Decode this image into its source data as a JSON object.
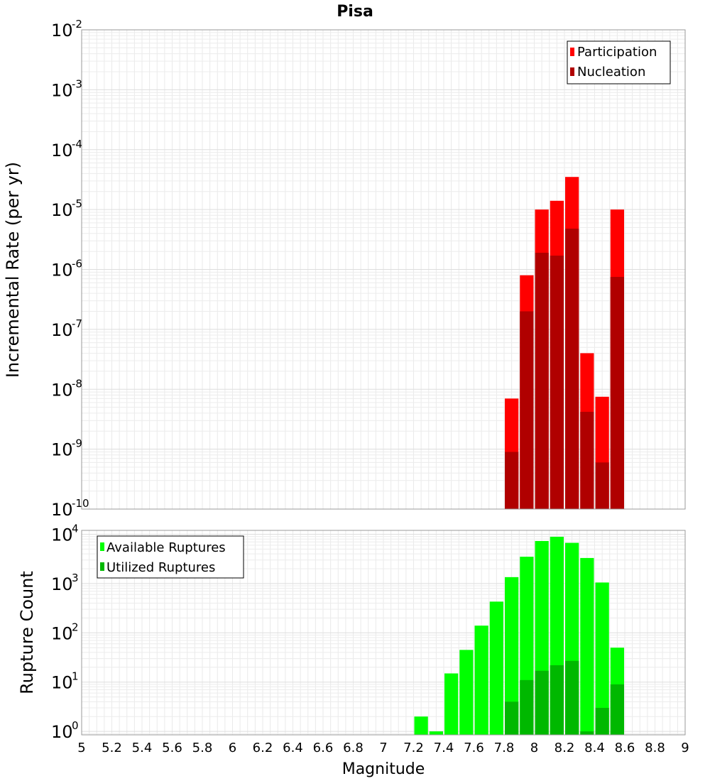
{
  "chart_data": [
    {
      "type": "bar",
      "title": "Pisa",
      "xlabel": "Magnitude",
      "ylabel": "Incremental Rate (per yr)",
      "yscale": "log",
      "xlim": [
        5,
        9
      ],
      "ylim": [
        1e-10,
        0.01
      ],
      "bin_width": 0.1,
      "x": [
        7.8,
        7.9,
        8.0,
        8.1,
        8.2,
        8.3,
        8.4,
        8.5
      ],
      "grid": true,
      "legend_position": "top-right",
      "y_ticks": [
        {
          "base": "10",
          "exp": "-2"
        },
        {
          "base": "10",
          "exp": "-3"
        },
        {
          "base": "10",
          "exp": "-4"
        },
        {
          "base": "10",
          "exp": "-5"
        },
        {
          "base": "10",
          "exp": "-6"
        },
        {
          "base": "10",
          "exp": "-7"
        },
        {
          "base": "10",
          "exp": "-8"
        },
        {
          "base": "10",
          "exp": "-9"
        },
        {
          "base": "10",
          "exp": "-10"
        }
      ],
      "series": [
        {
          "name": "Participation",
          "color": "#ff0000",
          "values": [
            7e-09,
            8e-07,
            1e-05,
            1.4e-05,
            3.5e-05,
            4e-08,
            7.5e-09,
            1e-05
          ]
        },
        {
          "name": "Nucleation",
          "color": "#b00000",
          "values": [
            9e-10,
            2e-07,
            1.9e-06,
            1.7e-06,
            4.8e-06,
            4.2e-09,
            6e-10,
            7.5e-07
          ]
        }
      ]
    },
    {
      "type": "bar",
      "title": "",
      "xlabel": "Magnitude",
      "ylabel": "Rupture Count",
      "yscale": "log",
      "xlim": [
        5,
        9
      ],
      "ylim": [
        0.85,
        12000
      ],
      "bin_width": 0.1,
      "x": [
        7.2,
        7.3,
        7.4,
        7.5,
        7.6,
        7.7,
        7.8,
        7.9,
        8.0,
        8.1,
        8.2,
        8.3,
        8.4,
        8.5
      ],
      "grid": true,
      "legend_position": "top-left",
      "x_ticks": [
        "5",
        "5.2",
        "5.4",
        "5.6",
        "5.8",
        "6",
        "6.2",
        "6.4",
        "6.6",
        "6.8",
        "7",
        "7.2",
        "7.4",
        "7.6",
        "7.8",
        "8",
        "8.2",
        "8.4",
        "8.6",
        "8.8",
        "9"
      ],
      "y_ticks": [
        {
          "base": "10",
          "exp": "4"
        },
        {
          "base": "10",
          "exp": "3"
        },
        {
          "base": "10",
          "exp": "2"
        },
        {
          "base": "10",
          "exp": "1"
        },
        {
          "base": "10",
          "exp": "0"
        }
      ],
      "series": [
        {
          "name": "Available Ruptures",
          "color": "#00ff00",
          "values": [
            2,
            1,
            15,
            45,
            140,
            430,
            1350,
            3500,
            7300,
            8900,
            6700,
            3300,
            1050,
            50
          ]
        },
        {
          "name": "Utilized Ruptures",
          "color": "#00b800",
          "values": [
            0,
            0,
            0,
            0,
            0,
            0,
            4,
            11,
            17,
            22,
            27,
            1,
            3,
            9
          ]
        }
      ]
    }
  ]
}
